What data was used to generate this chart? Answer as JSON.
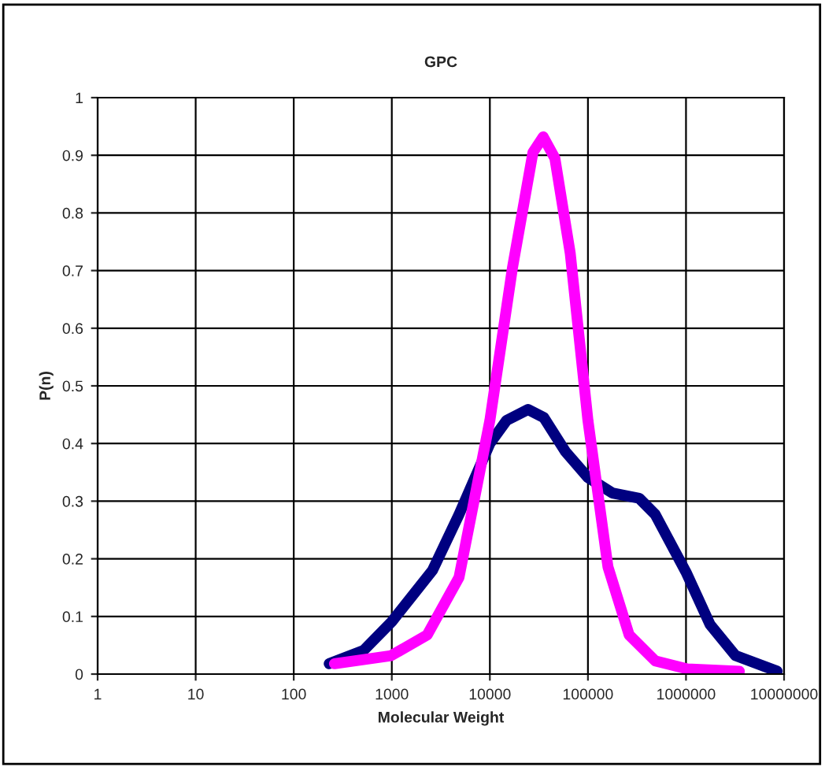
{
  "chart_data": {
    "type": "line",
    "title": "GPC",
    "xlabel": "Molecular Weight",
    "ylabel": "P(n)",
    "log": "x",
    "grid": true,
    "legend": false,
    "line_style": "solid",
    "marker": "none",
    "xlim": [
      1,
      10000000
    ],
    "xticks": [
      1,
      10,
      100,
      1000,
      10000,
      100000,
      1000000,
      10000000
    ],
    "ylim": [
      0,
      1
    ],
    "yticks": [
      0,
      0.1,
      0.2,
      0.3,
      0.4,
      0.5,
      0.6,
      0.7,
      0.8,
      0.9,
      1
    ],
    "series": [
      {
        "color": "#000080",
        "x": [
          230,
          515,
          1000,
          2600,
          4850,
          10000,
          14800,
          24500,
          35500,
          59000,
          100000,
          178000,
          333000,
          485000,
          1000000,
          1760000,
          3200000,
          8500000
        ],
        "values": [
          0.018,
          0.041,
          0.091,
          0.18,
          0.277,
          0.4,
          0.44,
          0.459,
          0.445,
          0.386,
          0.341,
          0.314,
          0.305,
          0.277,
          0.177,
          0.086,
          0.032,
          0.005
        ]
      },
      {
        "color": "#ff00ff",
        "x": [
          260,
          985,
          2300,
          4850,
          10000,
          17000,
          27500,
          35000,
          46000,
          66000,
          100000,
          160000,
          263000,
          485000,
          1030000,
          3500000
        ],
        "values": [
          0.018,
          0.032,
          0.068,
          0.168,
          0.44,
          0.705,
          0.905,
          0.932,
          0.895,
          0.73,
          0.44,
          0.186,
          0.068,
          0.023,
          0.009,
          0.005
        ]
      }
    ]
  }
}
